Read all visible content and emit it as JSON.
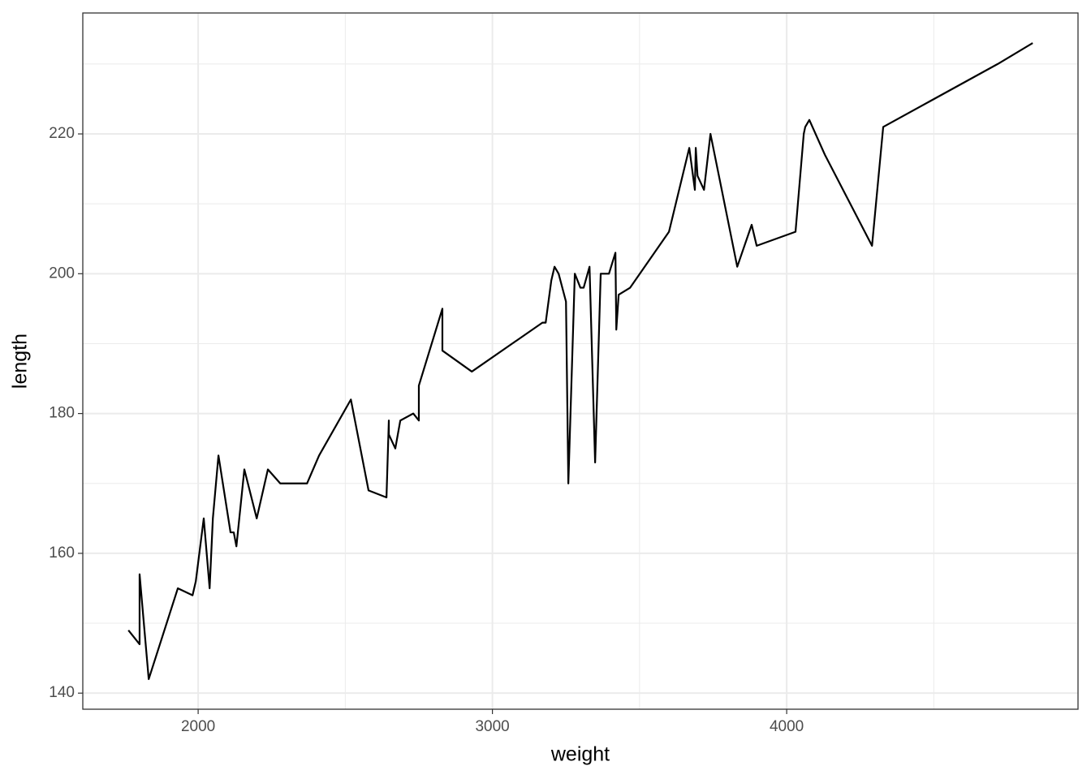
{
  "chart_data": {
    "type": "line",
    "x_label": "weight",
    "y_label": "length",
    "x": [
      1763,
      1801,
      1801,
      1832,
      1931,
      1981,
      1992,
      2019,
      2039,
      2050,
      2069,
      2110,
      2121,
      2130,
      2157,
      2199,
      2237,
      2279,
      2370,
      2411,
      2519,
      2579,
      2640,
      2648,
      2648,
      2670,
      2687,
      2731,
      2750,
      2750,
      2830,
      2830,
      2930,
      3170,
      3181,
      3200,
      3211,
      3225,
      3250,
      3258,
      3280,
      3299,
      3310,
      3330,
      3349,
      3368,
      3396,
      3418,
      3421,
      3429,
      3468,
      3600,
      3669,
      3688,
      3691,
      3697,
      3719,
      3741,
      3832,
      3881,
      3898,
      4030,
      4058,
      4063,
      4077,
      4130,
      4290,
      4328,
      4717,
      4836
    ],
    "series": [
      {
        "name": "length",
        "color": "#000000",
        "values": [
          149,
          147,
          157,
          142,
          155,
          154,
          156,
          165,
          155,
          165,
          174,
          163,
          163,
          161,
          172,
          165,
          172,
          170,
          170,
          174,
          182,
          169,
          168,
          179,
          177,
          175,
          179,
          180,
          179,
          184,
          195,
          189,
          186,
          193,
          193,
          199,
          201,
          200,
          196,
          170,
          200,
          198,
          198,
          201,
          173,
          200,
          200,
          203,
          192,
          197,
          198,
          206,
          218,
          212,
          218,
          214,
          212,
          220,
          201,
          207,
          204,
          206,
          220,
          221,
          222,
          217,
          204,
          221,
          230,
          233
        ]
      }
    ],
    "xlim": [
      1608,
      4990
    ],
    "ylim": [
      137.7,
      237.3
    ],
    "xticks": [
      2000,
      3000,
      4000
    ],
    "yticks": [
      140,
      160,
      180,
      200,
      220
    ],
    "grid": true
  }
}
